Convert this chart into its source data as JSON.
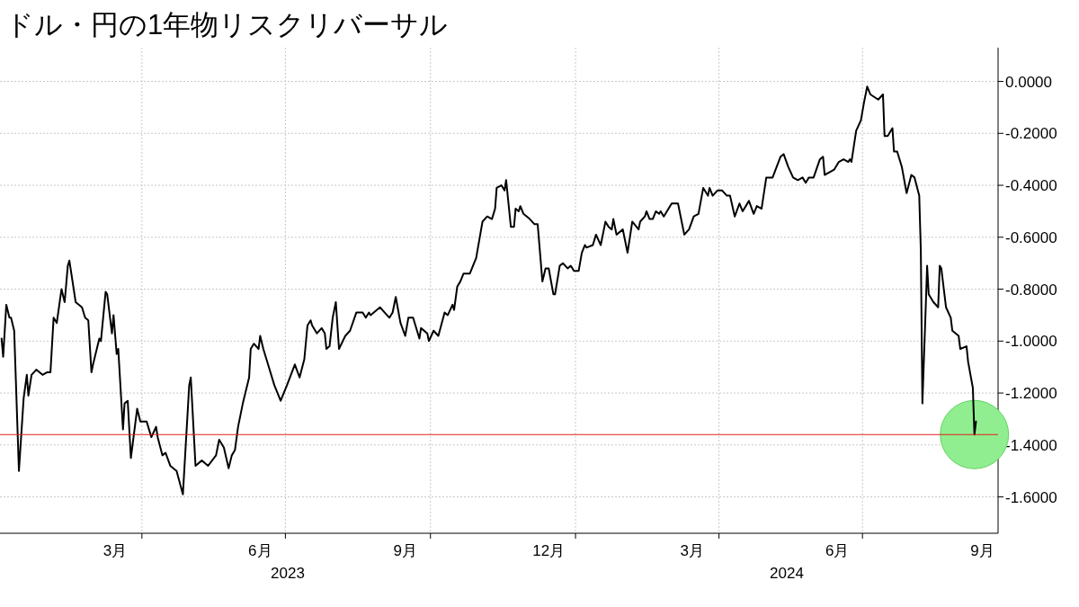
{
  "chart_data": {
    "type": "line",
    "title": "ドル・円の1年物リスクリバーサル",
    "xlim": [
      "2023-01-01",
      "2024-09-25"
    ],
    "ylim": [
      -1.74,
      0.13
    ],
    "xticks": [
      {
        "value": "2023-03-15",
        "label": "3月"
      },
      {
        "value": "2023-04-01",
        "label": null
      },
      {
        "value": "2023-06-15",
        "label": "6月"
      },
      {
        "value": "2023-07-01",
        "label": null
      },
      {
        "value": "2023-09-15",
        "label": "9月"
      },
      {
        "value": "2023-10-01",
        "label": null
      },
      {
        "value": "2023-12-15",
        "label": "12月"
      },
      {
        "value": "2024-01-01",
        "label": null
      },
      {
        "value": "2024-03-15",
        "label": "3月"
      },
      {
        "value": "2024-04-01",
        "label": null
      },
      {
        "value": "2024-06-15",
        "label": "6月"
      },
      {
        "value": "2024-07-01",
        "label": null
      },
      {
        "value": "2024-09-15",
        "label": "9月"
      }
    ],
    "yticks": [
      {
        "value": 0,
        "label": "0.0000"
      },
      {
        "value": -0.2,
        "label": "-0.2000"
      },
      {
        "value": -0.4,
        "label": "-0.4000"
      },
      {
        "value": -0.6,
        "label": "-0.6000"
      },
      {
        "value": -0.8,
        "label": "-0.8000"
      },
      {
        "value": -1.0,
        "label": "-1.0000"
      },
      {
        "value": -1.2,
        "label": "-1.2000"
      },
      {
        "value": -1.4,
        "label": "-1.4000"
      },
      {
        "value": -1.6,
        "label": "-1.6000"
      }
    ],
    "grid": true,
    "ref_lines": [
      {
        "axis": "y",
        "value": -1.36,
        "color": "#e0201b"
      }
    ],
    "annotations": [
      "2023",
      "2024"
    ],
    "series": [
      {
        "type": "scatter",
        "color": "#90ee90",
        "marker": "circle",
        "x": [
          "2024-09-10"
        ],
        "values": [
          -1.36
        ]
      },
      {
        "color": "#000000",
        "x": [
          "2023-01-02",
          "2023-01-03",
          "2023-01-05",
          "2023-01-07",
          "2023-01-08",
          "2023-01-10",
          "2023-01-13",
          "2023-01-16",
          "2023-01-18",
          "2023-01-19",
          "2023-01-21",
          "2023-01-24",
          "2023-01-28",
          "2023-01-31",
          "2023-02-02",
          "2023-02-04",
          "2023-02-06",
          "2023-02-09",
          "2023-02-11",
          "2023-02-13",
          "2023-02-14",
          "2023-02-16",
          "2023-02-18",
          "2023-02-22",
          "2023-02-24",
          "2023-02-26",
          "2023-02-28",
          "2023-03-01",
          "2023-03-05",
          "2023-03-06",
          "2023-03-09",
          "2023-03-10",
          "2023-03-13",
          "2023-03-14",
          "2023-03-16",
          "2023-03-17",
          "2023-03-20",
          "2023-03-21",
          "2023-03-23",
          "2023-03-25",
          "2023-03-29",
          "2023-03-31",
          "2023-04-04",
          "2023-04-07",
          "2023-04-10",
          "2023-04-11",
          "2023-04-14",
          "2023-04-16",
          "2023-04-19",
          "2023-04-23",
          "2023-04-27",
          "2023-05-01",
          "2023-05-02",
          "2023-05-05",
          "2023-05-09",
          "2023-05-13",
          "2023-05-18",
          "2023-05-20",
          "2023-05-23",
          "2023-05-26",
          "2023-05-28",
          "2023-05-30",
          "2023-06-01",
          "2023-06-04",
          "2023-06-08",
          "2023-06-09",
          "2023-06-11",
          "2023-06-14",
          "2023-06-15",
          "2023-06-17",
          "2023-06-19",
          "2023-06-24",
          "2023-06-28",
          "2023-07-02",
          "2023-07-07",
          "2023-07-10",
          "2023-07-13",
          "2023-07-15",
          "2023-07-17",
          "2023-07-18",
          "2023-07-21",
          "2023-07-24",
          "2023-07-26",
          "2023-07-27",
          "2023-07-29",
          "2023-07-31",
          "2023-08-02",
          "2023-08-04",
          "2023-08-08",
          "2023-08-11",
          "2023-08-15",
          "2023-08-19",
          "2023-08-21",
          "2023-08-23",
          "2023-08-24",
          "2023-08-30",
          "2023-09-02",
          "2023-09-05",
          "2023-09-07",
          "2023-09-09",
          "2023-09-12",
          "2023-09-15",
          "2023-09-17",
          "2023-09-20",
          "2023-09-24",
          "2023-09-25",
          "2023-09-29",
          "2023-09-30",
          "2023-10-03",
          "2023-10-06",
          "2023-10-10",
          "2023-10-12",
          "2023-10-15",
          "2023-10-16",
          "2023-10-18",
          "2023-10-20",
          "2023-10-22",
          "2023-10-26",
          "2023-10-30",
          "2023-11-03",
          "2023-11-06",
          "2023-11-09",
          "2023-11-11",
          "2023-11-12",
          "2023-11-15",
          "2023-11-17",
          "2023-11-18",
          "2023-11-21",
          "2023-11-23",
          "2023-11-24",
          "2023-11-26",
          "2023-11-27",
          "2023-11-29",
          "2023-12-03",
          "2023-12-06",
          "2023-12-08",
          "2023-12-11",
          "2023-12-13",
          "2023-12-15",
          "2023-12-18",
          "2023-12-19",
          "2023-12-22",
          "2023-12-24",
          "2023-12-27",
          "2023-12-29",
          "2023-12-31",
          "2024-01-03",
          "2024-01-05",
          "2024-01-07",
          "2024-01-08",
          "2024-01-12",
          "2024-01-14",
          "2024-01-17",
          "2024-01-20",
          "2024-01-22",
          "2024-01-24",
          "2024-01-25",
          "2024-01-27",
          "2024-01-31",
          "2024-02-01",
          "2024-02-03",
          "2024-02-06",
          "2024-02-10",
          "2024-02-11",
          "2024-02-14",
          "2024-02-15",
          "2024-02-17",
          "2024-02-19",
          "2024-02-21",
          "2024-02-23",
          "2024-02-24",
          "2024-02-26",
          "2024-03-02",
          "2024-03-04",
          "2024-03-06",
          "2024-03-10",
          "2024-03-13",
          "2024-03-16",
          "2024-03-19",
          "2024-03-22",
          "2024-03-25",
          "2024-03-26",
          "2024-03-28",
          "2024-03-31",
          "2024-04-03",
          "2024-04-06",
          "2024-04-08",
          "2024-04-11",
          "2024-04-14",
          "2024-04-16",
          "2024-04-20",
          "2024-04-23",
          "2024-04-25",
          "2024-04-28",
          "2024-05-01",
          "2024-05-05",
          "2024-05-10",
          "2024-05-12",
          "2024-05-15",
          "2024-05-18",
          "2024-05-21",
          "2024-05-24",
          "2024-05-26",
          "2024-05-28",
          "2024-05-31",
          "2024-06-04",
          "2024-06-06",
          "2024-06-07",
          "2024-06-10",
          "2024-06-13",
          "2024-06-16",
          "2024-06-19",
          "2024-06-22",
          "2024-06-23",
          "2024-06-24",
          "2024-06-27",
          "2024-06-30",
          "2024-07-02",
          "2024-07-04",
          "2024-07-06",
          "2024-07-11",
          "2024-07-14",
          "2024-07-15",
          "2024-07-17",
          "2024-07-20",
          "2024-07-21",
          "2024-07-23",
          "2024-07-26",
          "2024-07-29",
          "2024-08-01",
          "2024-08-03",
          "2024-08-06",
          "2024-08-07",
          "2024-08-08",
          "2024-08-10",
          "2024-08-11",
          "2024-08-12",
          "2024-08-15",
          "2024-08-18",
          "2024-08-19",
          "2024-08-20",
          "2024-08-23",
          "2024-08-26",
          "2024-08-27",
          "2024-08-31",
          "2024-09-01",
          "2024-09-05",
          "2024-09-06",
          "2024-09-09",
          "2024-09-10",
          "2024-09-11"
        ],
        "values": [
          -0.99,
          -1.06,
          -0.86,
          -0.91,
          -0.91,
          -0.96,
          -1.5,
          -1.22,
          -1.13,
          -1.21,
          -1.13,
          -1.11,
          -1.13,
          -1.12,
          -1.12,
          -0.91,
          -0.93,
          -0.8,
          -0.85,
          -0.71,
          -0.69,
          -0.77,
          -0.85,
          -0.87,
          -0.91,
          -0.92,
          -1.12,
          -1.09,
          -0.99,
          -1.0,
          -0.81,
          -0.82,
          -0.97,
          -0.9,
          -1.05,
          -1.03,
          -1.34,
          -1.24,
          -1.23,
          -1.45,
          -1.26,
          -1.31,
          -1.31,
          -1.37,
          -1.33,
          -1.37,
          -1.44,
          -1.43,
          -1.48,
          -1.5,
          -1.59,
          -1.17,
          -1.14,
          -1.48,
          -1.46,
          -1.48,
          -1.44,
          -1.38,
          -1.41,
          -1.49,
          -1.44,
          -1.42,
          -1.33,
          -1.24,
          -1.14,
          -1.03,
          -1.01,
          -1.03,
          -0.98,
          -1.03,
          -1.07,
          -1.17,
          -1.23,
          -1.17,
          -1.09,
          -1.14,
          -1.07,
          -0.94,
          -0.92,
          -0.94,
          -0.97,
          -0.95,
          -0.97,
          -1.03,
          -1.02,
          -0.91,
          -0.85,
          -1.03,
          -0.98,
          -0.96,
          -0.89,
          -0.89,
          -0.91,
          -0.89,
          -0.9,
          -0.87,
          -0.89,
          -0.91,
          -0.89,
          -0.83,
          -0.93,
          -0.98,
          -0.91,
          -0.91,
          -0.99,
          -0.95,
          -0.97,
          -1.0,
          -0.96,
          -0.98,
          -0.89,
          -0.9,
          -0.86,
          -0.88,
          -0.79,
          -0.77,
          -0.74,
          -0.74,
          -0.68,
          -0.54,
          -0.52,
          -0.53,
          -0.49,
          -0.41,
          -0.4,
          -0.42,
          -0.38,
          -0.56,
          -0.56,
          -0.49,
          -0.5,
          -0.48,
          -0.51,
          -0.53,
          -0.55,
          -0.55,
          -0.77,
          -0.72,
          -0.72,
          -0.82,
          -0.82,
          -0.71,
          -0.7,
          -0.72,
          -0.71,
          -0.73,
          -0.73,
          -0.66,
          -0.63,
          -0.64,
          -0.63,
          -0.59,
          -0.63,
          -0.54,
          -0.56,
          -0.57,
          -0.53,
          -0.59,
          -0.57,
          -0.6,
          -0.66,
          -0.54,
          -0.57,
          -0.54,
          -0.52,
          -0.5,
          -0.53,
          -0.53,
          -0.5,
          -0.51,
          -0.5,
          -0.52,
          -0.47,
          -0.47,
          -0.47,
          -0.59,
          -0.57,
          -0.52,
          -0.51,
          -0.41,
          -0.44,
          -0.41,
          -0.44,
          -0.42,
          -0.42,
          -0.44,
          -0.44,
          -0.52,
          -0.47,
          -0.5,
          -0.46,
          -0.51,
          -0.48,
          -0.49,
          -0.37,
          -0.37,
          -0.29,
          -0.28,
          -0.33,
          -0.37,
          -0.38,
          -0.37,
          -0.39,
          -0.37,
          -0.37,
          -0.3,
          -0.29,
          -0.36,
          -0.35,
          -0.34,
          -0.31,
          -0.3,
          -0.31,
          -0.3,
          -0.31,
          -0.19,
          -0.15,
          -0.08,
          -0.02,
          -0.05,
          -0.07,
          -0.05,
          -0.21,
          -0.21,
          -0.18,
          -0.27,
          -0.27,
          -0.33,
          -0.43,
          -0.36,
          -0.37,
          -0.44,
          -0.65,
          -1.24,
          -0.89,
          -0.71,
          -0.82,
          -0.85,
          -0.87,
          -0.71,
          -0.72,
          -0.87,
          -0.91,
          -0.96,
          -0.98,
          -1.03,
          -1.02,
          -1.08,
          -1.18,
          -1.36,
          -1.31
        ]
      }
    ]
  }
}
